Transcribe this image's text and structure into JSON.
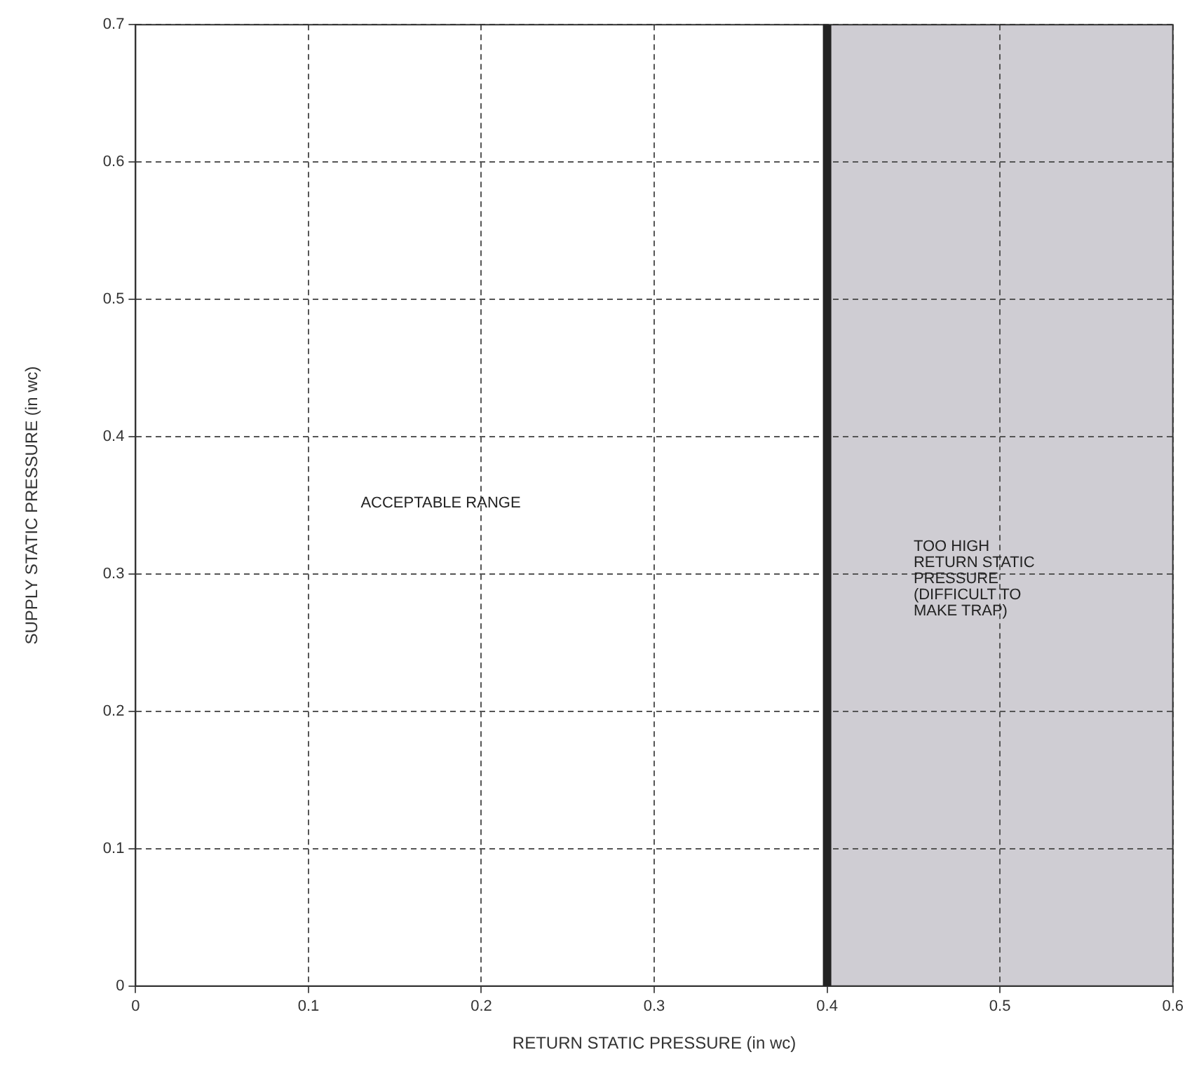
{
  "chart_data": {
    "type": "scatter",
    "xlabel": "RETURN STATIC PRESSURE (in wc)",
    "ylabel": "SUPPLY STATIC PRESSURE (in wc)",
    "xlim": [
      0,
      0.6
    ],
    "xticks": [
      0,
      0.1,
      0.2,
      0.3,
      0.4,
      0.5,
      0.6
    ],
    "ylim": [
      0,
      0.7
    ],
    "yticks": [
      0,
      0.1,
      0.2,
      0.3,
      0.4,
      0.5,
      0.6,
      0.7
    ],
    "grid": true,
    "ref_lines": [
      {
        "axis": "x",
        "value": 0.4,
        "color": "#222222"
      }
    ],
    "bands": [
      {
        "axis": "x",
        "from": 0.4,
        "to": 0.6,
        "label": "TOO HIGH\nRETURN STATIC\nPRESSURE\n(DIFFICULT TO\nMAKE TRAP)",
        "color": "#cfcdd3"
      }
    ],
    "annotations": [
      "ACCEPTABLE RANGE"
    ]
  }
}
